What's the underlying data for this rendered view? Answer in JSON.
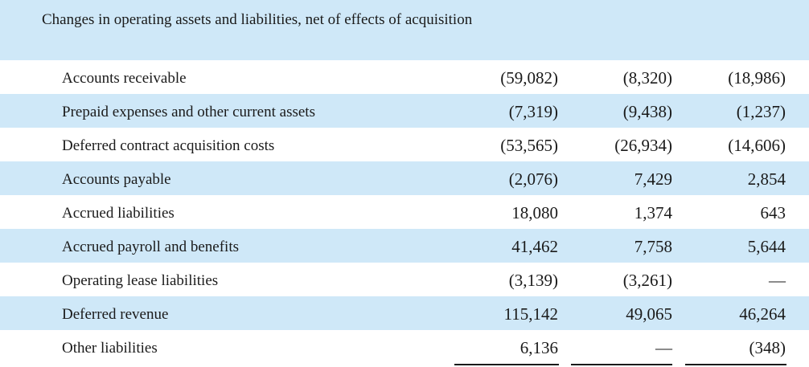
{
  "header": {
    "text": "Changes in operating assets and liabilities, net of effects of acquisition"
  },
  "rows": [
    {
      "label": "Accounts receivable",
      "values": [
        "(59,082)",
        "(8,320)",
        "(18,986)"
      ]
    },
    {
      "label": "Prepaid expenses and other current assets",
      "values": [
        "(7,319)",
        "(9,438)",
        "(1,237)"
      ]
    },
    {
      "label": "Deferred contract acquisition costs",
      "values": [
        "(53,565)",
        "(26,934)",
        "(14,606)"
      ]
    },
    {
      "label": "Accounts payable",
      "values": [
        "(2,076)",
        "7,429",
        "2,854"
      ]
    },
    {
      "label": "Accrued liabilities",
      "values": [
        "18,080",
        "1,374",
        "643"
      ]
    },
    {
      "label": "Accrued payroll and benefits",
      "values": [
        "41,462",
        "7,758",
        "5,644"
      ]
    },
    {
      "label": "Operating lease liabilities",
      "values": [
        "(3,139)",
        "(3,261)",
        "—"
      ]
    },
    {
      "label": "Deferred revenue",
      "values": [
        "115,142",
        "49,065",
        "46,264"
      ]
    },
    {
      "label": "Other liabilities",
      "values": [
        "6,136",
        "—",
        "(348)"
      ]
    }
  ],
  "colors": {
    "band": "#cfe8f8",
    "text": "#1a1a1a"
  }
}
